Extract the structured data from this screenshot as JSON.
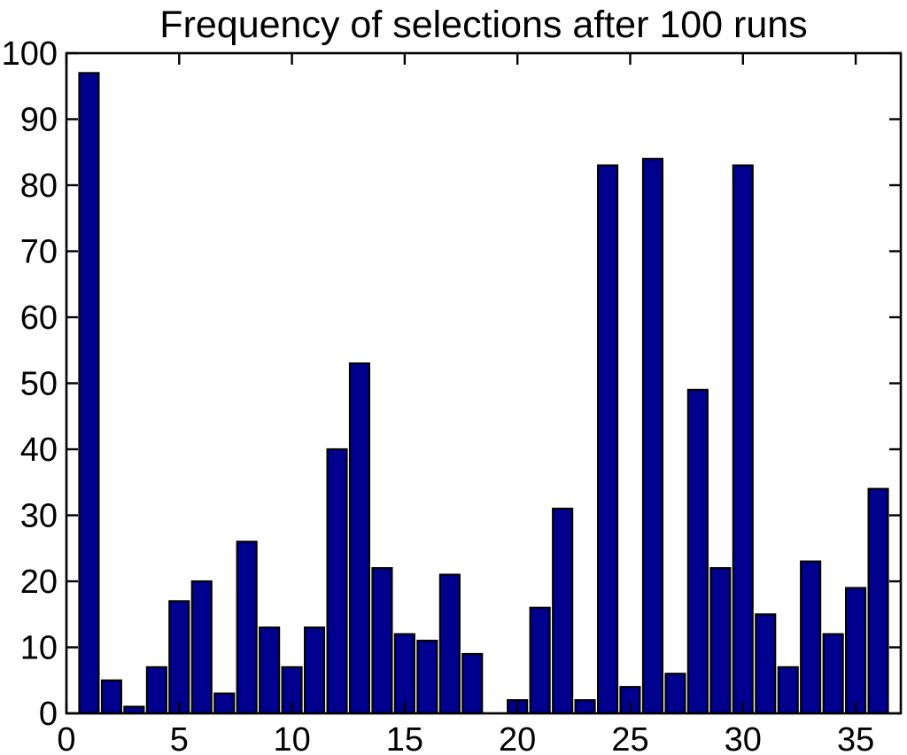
{
  "chart_data": {
    "type": "bar",
    "title": "Frequency of selections after 100 runs",
    "xlabel": "",
    "ylabel": "",
    "x": [
      1,
      2,
      3,
      4,
      5,
      6,
      7,
      8,
      9,
      10,
      11,
      12,
      13,
      14,
      15,
      16,
      17,
      18,
      19,
      20,
      21,
      22,
      23,
      24,
      25,
      26,
      27,
      28,
      29,
      30,
      31,
      32,
      33,
      34,
      35,
      36
    ],
    "values": [
      97,
      5,
      1,
      7,
      17,
      20,
      3,
      26,
      13,
      7,
      13,
      40,
      53,
      22,
      12,
      11,
      21,
      9,
      0,
      2,
      16,
      31,
      2,
      83,
      4,
      84,
      6,
      49,
      22,
      83,
      15,
      7,
      23,
      12,
      19,
      34
    ],
    "xlim": [
      0,
      37
    ],
    "ylim": [
      0,
      100
    ],
    "x_ticks": [
      0,
      5,
      10,
      15,
      20,
      25,
      30,
      35
    ],
    "y_ticks": [
      0,
      10,
      20,
      30,
      40,
      50,
      60,
      70,
      80,
      90,
      100
    ],
    "bar_width_units": 0.86,
    "grid": false,
    "legend": null,
    "colors": {
      "bar_fill": "#00008f",
      "bar_edge": "#000000",
      "axis": "#000000",
      "text": "#000000",
      "background": "#ffffff"
    }
  }
}
